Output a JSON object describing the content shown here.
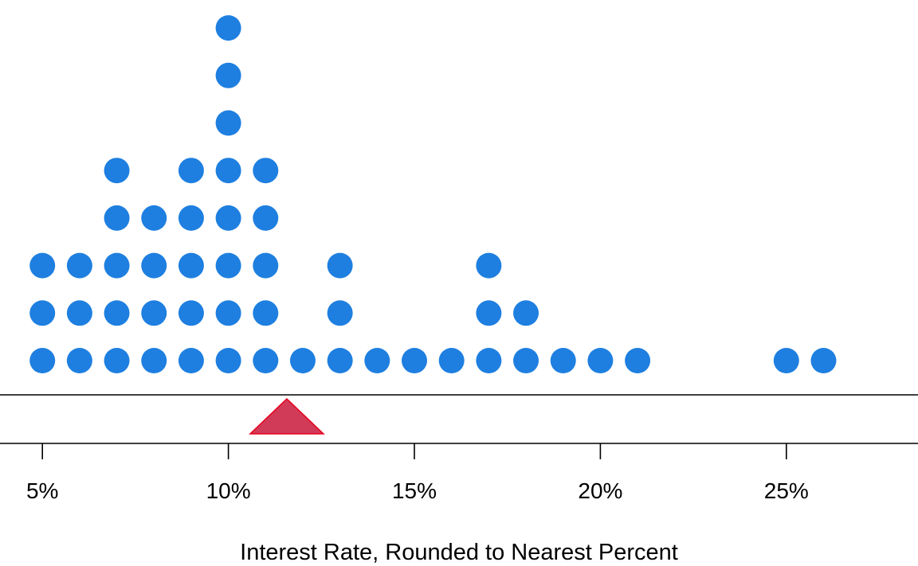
{
  "chart_data": {
    "type": "dot plot",
    "xlabel": "Interest Rate, Rounded to Nearest Percent",
    "x_unit": "%",
    "xlim": [
      4,
      28
    ],
    "x_ticks": [
      5,
      10,
      15,
      20,
      25
    ],
    "x_tick_labels": [
      "5%",
      "10%",
      "15%",
      "20%",
      "25%"
    ],
    "points": [
      {
        "x": 5,
        "count": 3
      },
      {
        "x": 6,
        "count": 3
      },
      {
        "x": 7,
        "count": 5
      },
      {
        "x": 8,
        "count": 4
      },
      {
        "x": 9,
        "count": 5
      },
      {
        "x": 10,
        "count": 8
      },
      {
        "x": 11,
        "count": 5
      },
      {
        "x": 12,
        "count": 1
      },
      {
        "x": 13,
        "count": 3
      },
      {
        "x": 14,
        "count": 1
      },
      {
        "x": 15,
        "count": 1
      },
      {
        "x": 16,
        "count": 1
      },
      {
        "x": 17,
        "count": 3
      },
      {
        "x": 18,
        "count": 2
      },
      {
        "x": 19,
        "count": 1
      },
      {
        "x": 20,
        "count": 1
      },
      {
        "x": 21,
        "count": 1
      },
      {
        "x": 25,
        "count": 1
      },
      {
        "x": 26,
        "count": 1
      }
    ],
    "marker": {
      "shape": "triangle",
      "x": 11.57
    },
    "grid": false,
    "colors": {
      "dot": "#1e7fe0",
      "marker_fill": "#d13b58",
      "marker_stroke": "#e8001c",
      "axis": "#000000"
    }
  }
}
